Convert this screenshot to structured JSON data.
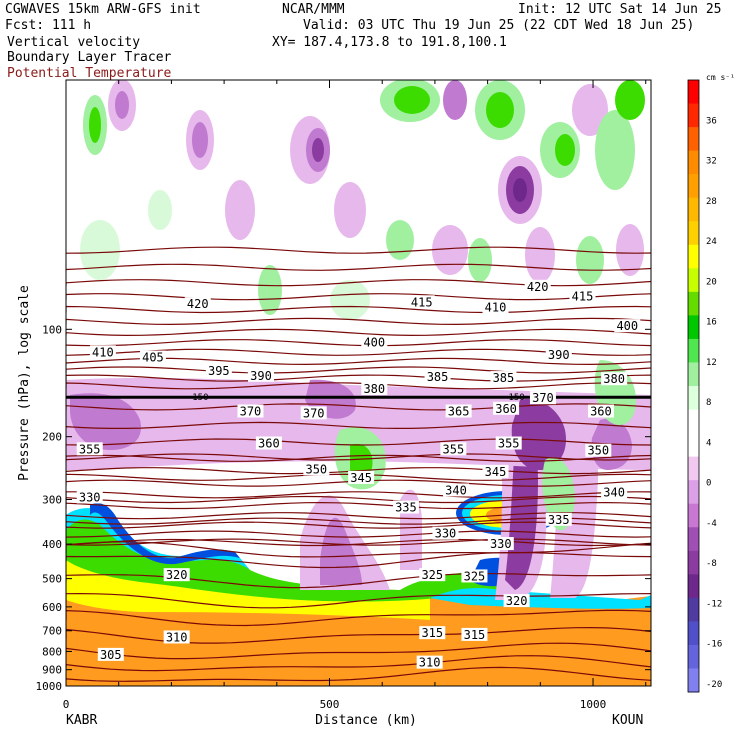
{
  "header": {
    "model": "CGWAVES 15km ARW-GFS init",
    "forecast": "Fcst: 111 h",
    "field_1": "Vertical velocity",
    "field_2": "Boundary Layer Tracer",
    "field_3": "Potential Temperature",
    "center": "NCAR/MMM",
    "init": "Init: 12 UTC Sat 14 Jun 25",
    "valid": "Valid: 03 UTC Thu 19 Jun 25 (22 CDT Wed 18 Jun 25)",
    "xy": "XY= 187.4,173.8 to 191.8,100.1"
  },
  "colorbar": {
    "unit": "cm s⁻¹",
    "labels": [
      "36",
      "32",
      "28",
      "24",
      "20",
      "16",
      "12",
      "8",
      "4",
      "0",
      "-4",
      "-8",
      "-12",
      "-16",
      "-20"
    ],
    "colors": [
      "#ff0000",
      "#ff2800",
      "#ff6000",
      "#ff8c00",
      "#ffa000",
      "#ffb800",
      "#ffd000",
      "#ffff00",
      "#c8ff00",
      "#64dc00",
      "#00c800",
      "#50e650",
      "#a0f0a0",
      "#dcffdc",
      "#ffffff",
      "#ffffff",
      "#f0c8f0",
      "#dca0e6",
      "#c878d2",
      "#a050b4",
      "#8c3ca0",
      "#6e288c",
      "#503ca0",
      "#5050c8",
      "#6464dc",
      "#8080f0"
    ]
  },
  "colors": {
    "theta": "#7a0a0a",
    "tropopause": "#000000",
    "up_strong": "#ff6a00",
    "up_orange": "#ff9b1e",
    "yellow": "#ffff00",
    "green": "#3cdc00",
    "light_green": "#a0f0a0",
    "pale_green": "#d8fad8",
    "cyan": "#00e0ff",
    "blue": "#0050e0",
    "light_purple": "#e6b8ec",
    "mid_purple": "#c07ad0",
    "purple": "#8c3ca0",
    "dark_purple": "#6e288c"
  },
  "chart_data": {
    "type": "heatmap",
    "title": "",
    "xlabel": "Distance (km)",
    "ylabel": "Pressure (hPa), log scale",
    "x_ticks": [
      0,
      500,
      1000
    ],
    "x_lim": [
      0,
      1110
    ],
    "y_ticks": [
      100,
      200,
      300,
      400,
      500,
      600,
      700,
      800,
      900,
      1000
    ],
    "y_scale": "log",
    "y_lim": [
      1000,
      20
    ],
    "endpoints": {
      "left": "KABR",
      "right": "KOUN"
    },
    "tropopause_label": "150",
    "tropopause_label_2": "150",
    "theta_labels": [
      {
        "text": "420",
        "x": 250,
        "p": 85
      },
      {
        "text": "410",
        "x": 70,
        "p": 116
      },
      {
        "text": "405",
        "x": 165,
        "p": 120
      },
      {
        "text": "395",
        "x": 290,
        "p": 131
      },
      {
        "text": "390",
        "x": 370,
        "p": 135
      },
      {
        "text": "400",
        "x": 585,
        "p": 109
      },
      {
        "text": "415",
        "x": 675,
        "p": 84
      },
      {
        "text": "380",
        "x": 585,
        "p": 147
      },
      {
        "text": "385",
        "x": 705,
        "p": 136
      },
      {
        "text": "370",
        "x": 350,
        "p": 170
      },
      {
        "text": "370",
        "x": 470,
        "p": 172
      },
      {
        "text": "410",
        "x": 815,
        "p": 87
      },
      {
        "text": "420",
        "x": 895,
        "p": 76
      },
      {
        "text": "415",
        "x": 980,
        "p": 81
      },
      {
        "text": "400",
        "x": 1065,
        "p": 98
      },
      {
        "text": "390",
        "x": 935,
        "p": 118
      },
      {
        "text": "385",
        "x": 830,
        "p": 137
      },
      {
        "text": "380",
        "x": 1040,
        "p": 138
      },
      {
        "text": "370",
        "x": 905,
        "p": 156
      },
      {
        "text": "365",
        "x": 745,
        "p": 170
      },
      {
        "text": "360",
        "x": 835,
        "p": 167
      },
      {
        "text": "360",
        "x": 1015,
        "p": 170
      },
      {
        "text": "360",
        "x": 385,
        "p": 209
      },
      {
        "text": "355",
        "x": 45,
        "p": 217
      },
      {
        "text": "355",
        "x": 735,
        "p": 217
      },
      {
        "text": "355",
        "x": 840,
        "p": 209
      },
      {
        "text": "350",
        "x": 475,
        "p": 247
      },
      {
        "text": "350",
        "x": 1010,
        "p": 219
      },
      {
        "text": "345",
        "x": 560,
        "p": 261
      },
      {
        "text": "345",
        "x": 815,
        "p": 251
      },
      {
        "text": "340",
        "x": 740,
        "p": 283
      },
      {
        "text": "340",
        "x": 1040,
        "p": 287
      },
      {
        "text": "335",
        "x": 645,
        "p": 316
      },
      {
        "text": "335",
        "x": 935,
        "p": 342
      },
      {
        "text": "330",
        "x": 45,
        "p": 296
      },
      {
        "text": "330",
        "x": 720,
        "p": 374
      },
      {
        "text": "330",
        "x": 825,
        "p": 400
      },
      {
        "text": "325",
        "x": 695,
        "p": 489
      },
      {
        "text": "325",
        "x": 775,
        "p": 493
      },
      {
        "text": "320",
        "x": 210,
        "p": 489
      },
      {
        "text": "320",
        "x": 855,
        "p": 578
      },
      {
        "text": "315",
        "x": 695,
        "p": 711
      },
      {
        "text": "315",
        "x": 775,
        "p": 719
      },
      {
        "text": "310",
        "x": 210,
        "p": 731
      },
      {
        "text": "310",
        "x": 690,
        "p": 860
      },
      {
        "text": "305",
        "x": 85,
        "p": 818
      }
    ]
  }
}
